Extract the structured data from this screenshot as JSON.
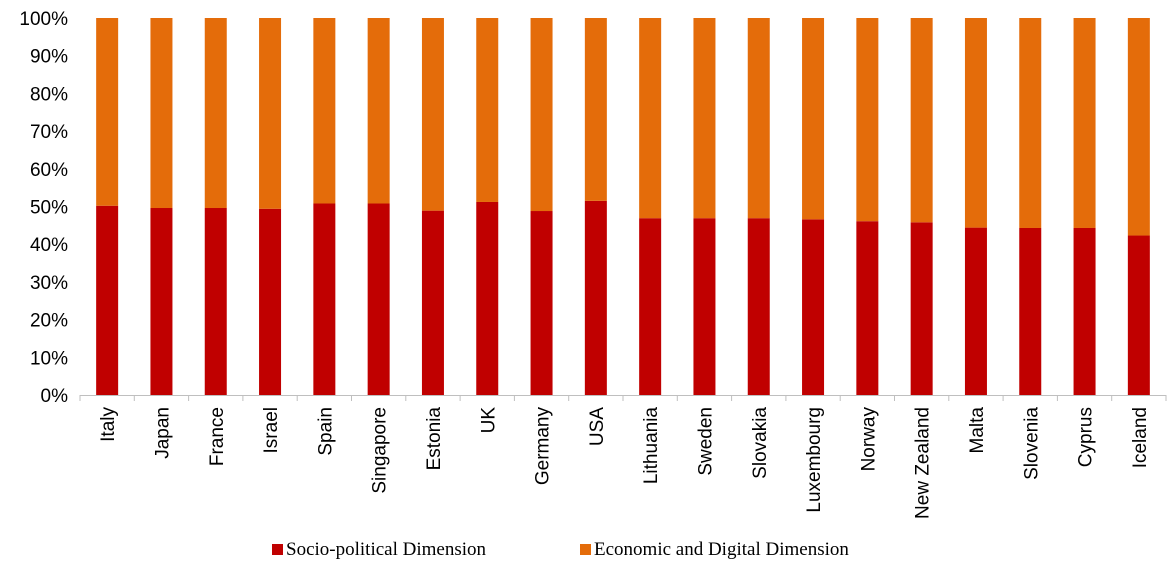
{
  "chart_data": {
    "type": "bar",
    "stacked": true,
    "percent_stacked": true,
    "title": "",
    "xlabel": "",
    "ylabel": "",
    "ylim": [
      0,
      100
    ],
    "y_ticks": [
      "0%",
      "10%",
      "20%",
      "30%",
      "40%",
      "50%",
      "60%",
      "70%",
      "80%",
      "90%",
      "100%"
    ],
    "grid": false,
    "legend_position": "bottom",
    "categories": [
      "Italy",
      "Japan",
      "France",
      "Israel",
      "Spain",
      "Singapore",
      "Estonia",
      "UK",
      "Germany",
      "USA",
      "Lithuania",
      "Sweden",
      "Slovakia",
      "Luxembourg",
      "Norway",
      "New Zealand",
      "Malta",
      "Slovenia",
      "Cyprus",
      "Iceland"
    ],
    "series": [
      {
        "name": "Socio-political Dimension",
        "color": "#c00000",
        "values": [
          50.2,
          49.6,
          49.6,
          49.4,
          50.8,
          50.8,
          48.9,
          51.2,
          48.8,
          51.5,
          46.9,
          46.9,
          46.9,
          46.6,
          46.1,
          45.8,
          44.4,
          44.3,
          44.3,
          42.3
        ]
      },
      {
        "name": "Economic and Digital Dimension",
        "color": "#e46c0a",
        "values": [
          49.8,
          50.4,
          50.4,
          50.6,
          49.2,
          49.2,
          51.1,
          48.8,
          51.2,
          48.5,
          53.1,
          53.1,
          53.1,
          53.4,
          53.9,
          54.2,
          55.6,
          55.7,
          55.7,
          57.7
        ]
      }
    ]
  }
}
